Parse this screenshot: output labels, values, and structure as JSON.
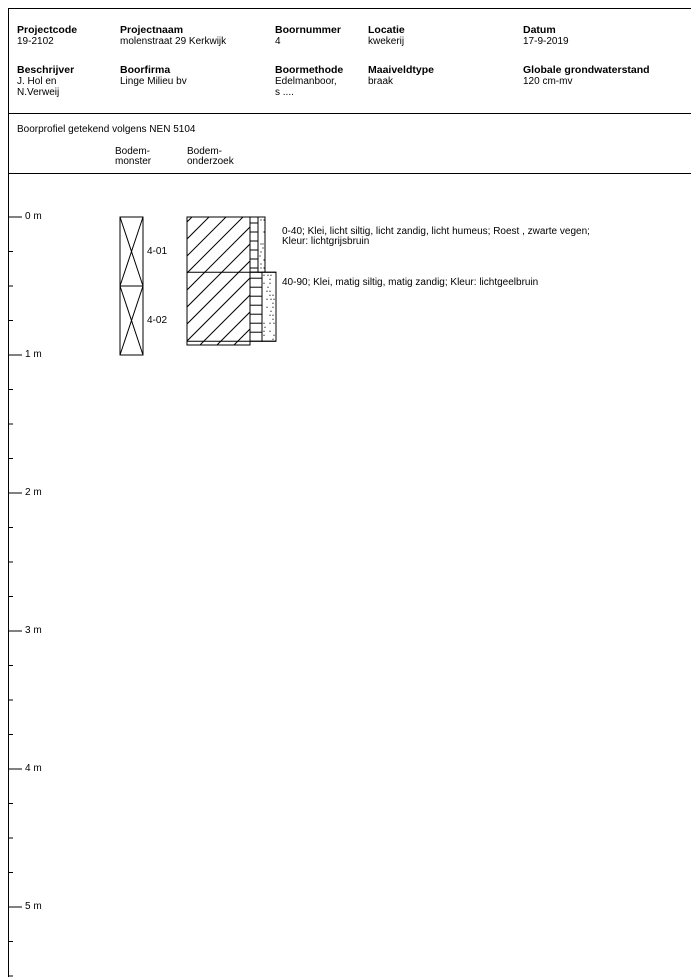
{
  "header": {
    "row1": [
      {
        "label": "Projectcode",
        "value": "19-2102"
      },
      {
        "label": "Projectnaam",
        "value": "molenstraat 29 Kerkwijk"
      },
      {
        "label": "Boornummer",
        "value": "4"
      },
      {
        "label": "Locatie",
        "value": "kwekerij"
      },
      {
        "label": "Datum",
        "value": "17-9-2019"
      }
    ],
    "row2": [
      {
        "label": "Beschrijver",
        "value": "J. Hol en",
        "value2": "N.Verweij"
      },
      {
        "label": "Boorfirma",
        "value": "Linge Milieu bv"
      },
      {
        "label": "Boormethode",
        "value": "Edelmanboor,",
        "value2": "s ...."
      },
      {
        "label": "Maaiveldtype",
        "value": "braak"
      },
      {
        "label": "Globale grondwaterstand",
        "value": "120 cm-mv"
      }
    ]
  },
  "subtitle": "Boorprofiel getekend volgens NEN 5104",
  "columns": {
    "monster": [
      "Bodem-",
      "monster"
    ],
    "onderzoek": [
      "Bodem-",
      "onderzoek"
    ]
  },
  "depth_scale": [
    "0 m",
    "1 m",
    "2 m",
    "3 m",
    "4 m",
    "5 m"
  ],
  "samples": [
    {
      "id": "4-01",
      "from_cm": 0,
      "to_cm": 50
    },
    {
      "id": "4-02",
      "from_cm": 50,
      "to_cm": 100
    }
  ],
  "layers": [
    {
      "from_cm": 0,
      "to_cm": 40,
      "line1": "0-40; Klei, licht siltig, licht zandig, licht humeus; Roest , zwarte vegen;",
      "line2": "Kleur: lichtgrijsbruin"
    },
    {
      "from_cm": 40,
      "to_cm": 90,
      "line1": "40-90; Klei, matig siltig, matig zandig; Kleur: lichtgeelbruin",
      "line2": ""
    }
  ]
}
